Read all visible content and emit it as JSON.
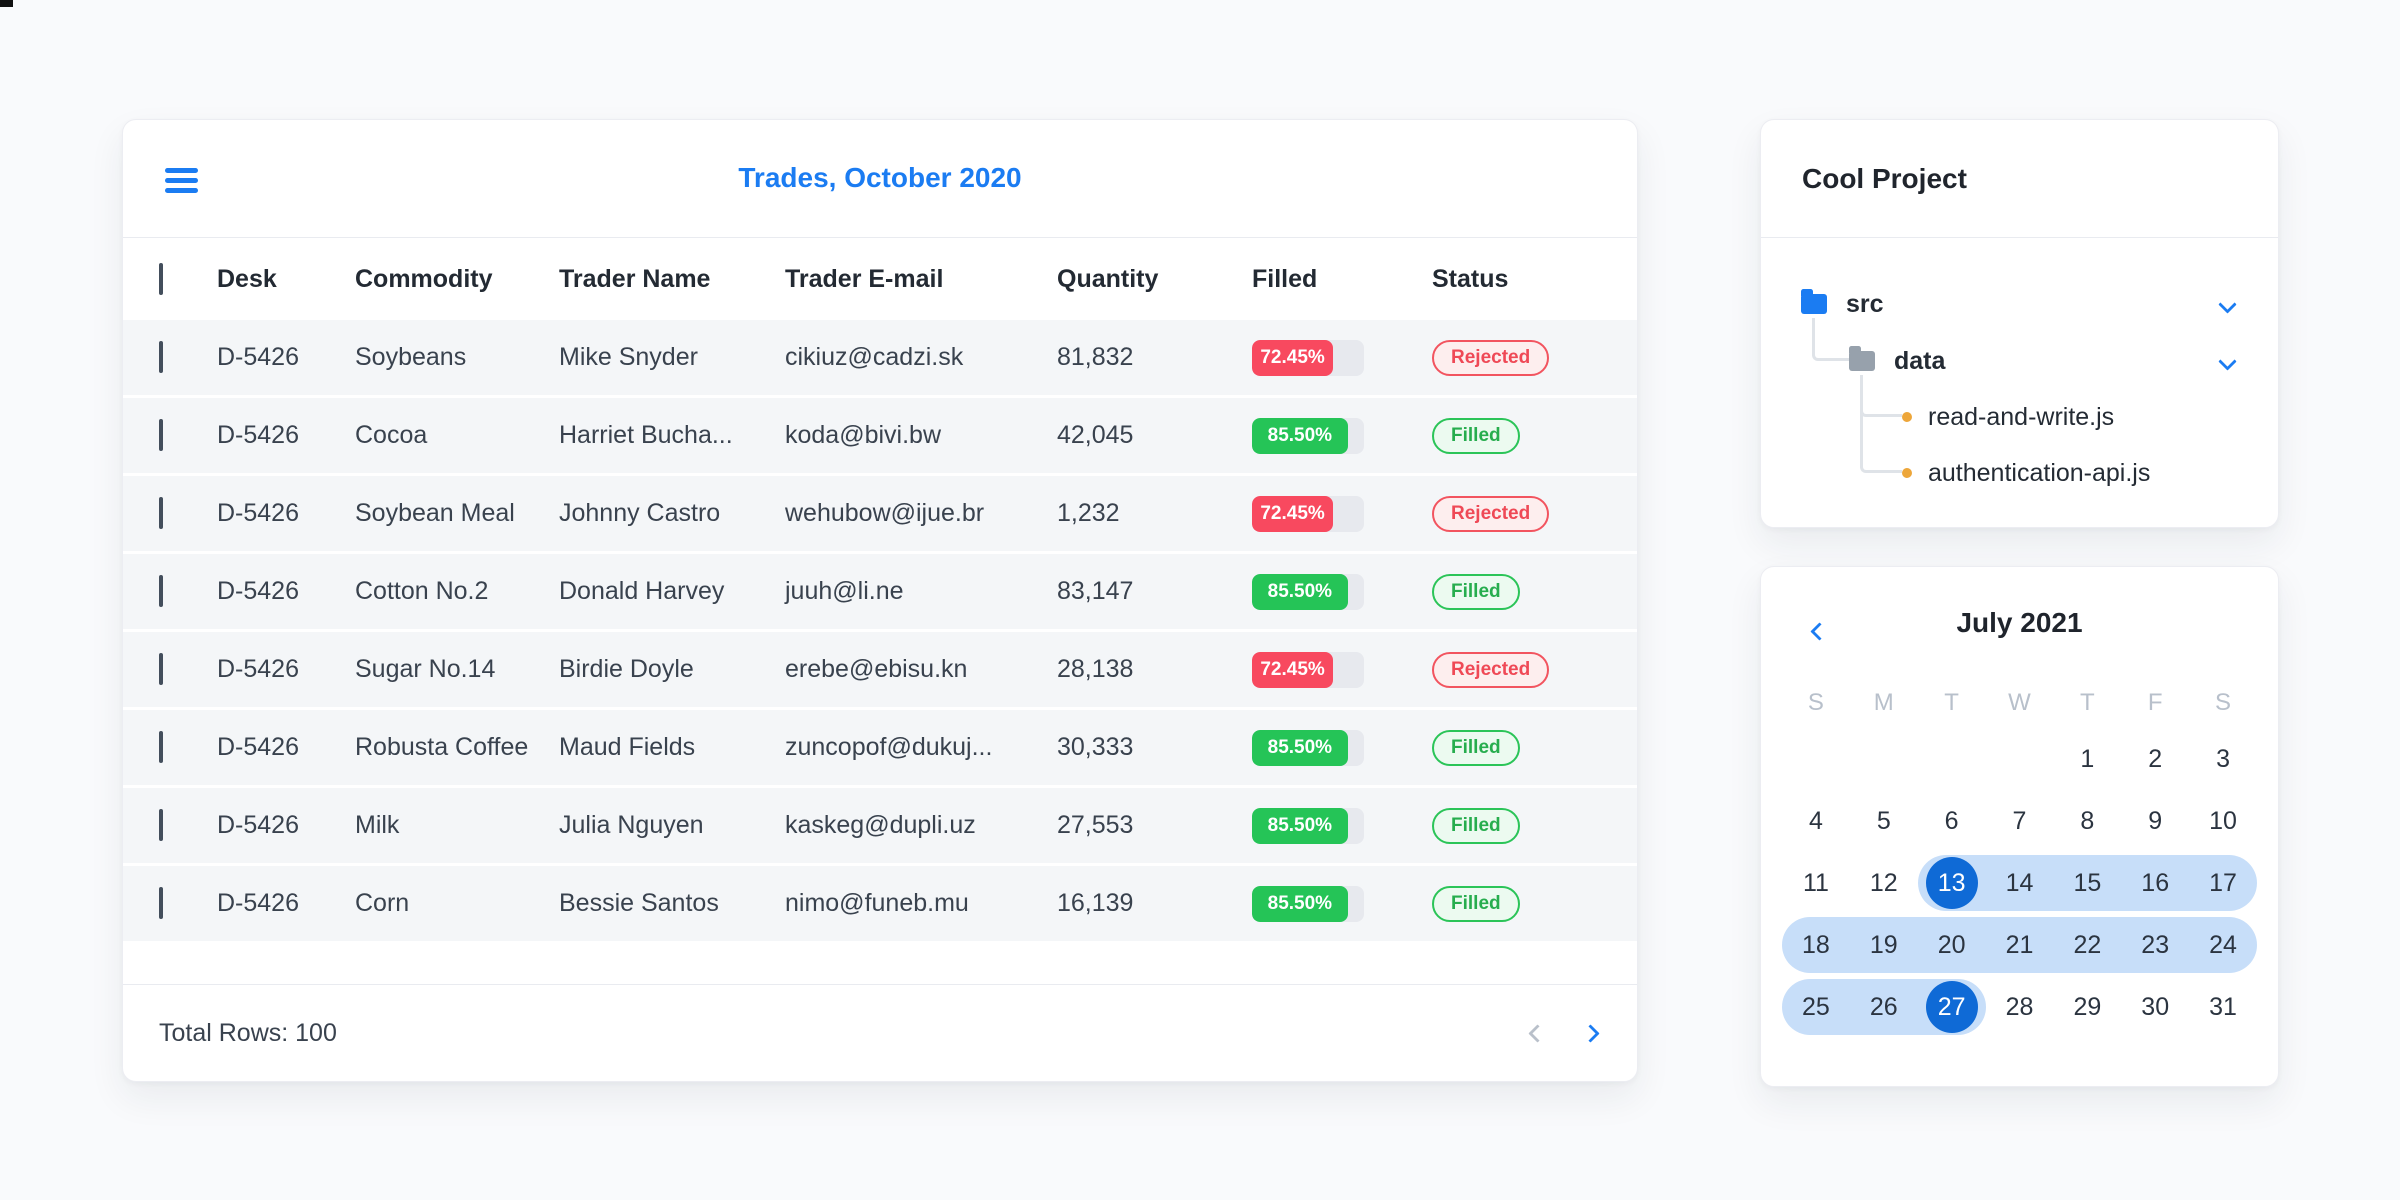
{
  "trades_card": {
    "title": "Trades, October 2020",
    "columns": [
      "Desk",
      "Commodity",
      "Trader Name",
      "Trader E-mail",
      "Quantity",
      "Filled",
      "Status"
    ],
    "rows": [
      {
        "desk": "D-5426",
        "commodity": "Soybeans",
        "trader_name": "Mike Snyder",
        "trader_email": "cikiuz@cadzi.sk",
        "quantity": "81,832",
        "filled_label": "72.45%",
        "filled_percent": 72.45,
        "filled_color": "red",
        "status": "Rejected",
        "status_type": "rejected"
      },
      {
        "desk": "D-5426",
        "commodity": "Cocoa",
        "trader_name": "Harriet Bucha...",
        "trader_email": "koda@bivi.bw",
        "quantity": "42,045",
        "filled_label": "85.50%",
        "filled_percent": 85.5,
        "filled_color": "green",
        "status": "Filled",
        "status_type": "filled"
      },
      {
        "desk": "D-5426",
        "commodity": "Soybean Meal",
        "trader_name": "Johnny Castro",
        "trader_email": "wehubow@ijue.br",
        "quantity": "1,232",
        "filled_label": "72.45%",
        "filled_percent": 72.45,
        "filled_color": "red",
        "status": "Rejected",
        "status_type": "rejected"
      },
      {
        "desk": "D-5426",
        "commodity": "Cotton No.2",
        "trader_name": "Donald Harvey",
        "trader_email": "juuh@li.ne",
        "quantity": "83,147",
        "filled_label": "85.50%",
        "filled_percent": 85.5,
        "filled_color": "green",
        "status": "Filled",
        "status_type": "filled"
      },
      {
        "desk": "D-5426",
        "commodity": "Sugar No.14",
        "trader_name": "Birdie Doyle",
        "trader_email": "erebe@ebisu.kn",
        "quantity": "28,138",
        "filled_label": "72.45%",
        "filled_percent": 72.45,
        "filled_color": "red",
        "status": "Rejected",
        "status_type": "rejected"
      },
      {
        "desk": "D-5426",
        "commodity": "Robusta Coffee",
        "trader_name": "Maud Fields",
        "trader_email": "zuncopof@dukuj...",
        "quantity": "30,333",
        "filled_label": "85.50%",
        "filled_percent": 85.5,
        "filled_color": "green",
        "status": "Filled",
        "status_type": "filled"
      },
      {
        "desk": "D-5426",
        "commodity": "Milk",
        "trader_name": "Julia Nguyen",
        "trader_email": "kaskeg@dupli.uz",
        "quantity": "27,553",
        "filled_label": "85.50%",
        "filled_percent": 85.5,
        "filled_color": "green",
        "status": "Filled",
        "status_type": "filled"
      },
      {
        "desk": "D-5426",
        "commodity": "Corn",
        "trader_name": "Bessie Santos",
        "trader_email": "nimo@funeb.mu",
        "quantity": "16,139",
        "filled_label": "85.50%",
        "filled_percent": 85.5,
        "filled_color": "green",
        "status": "Filled",
        "status_type": "filled"
      }
    ],
    "footer": {
      "total_rows_label": "Total Rows: 100"
    }
  },
  "project_card": {
    "title": "Cool Project",
    "tree": [
      {
        "label": "src",
        "kind": "folder",
        "folder_color": "blue",
        "expanded": true
      },
      {
        "label": "data",
        "kind": "folder",
        "folder_color": "gray",
        "expanded": true
      },
      {
        "label": "read-and-write.js",
        "kind": "file"
      },
      {
        "label": "authentication-api.js",
        "kind": "file"
      }
    ]
  },
  "calendar_card": {
    "title": "July 2021",
    "weekdays": [
      "S",
      "M",
      "T",
      "W",
      "T",
      "F",
      "S"
    ],
    "weeks": [
      [
        null,
        null,
        null,
        null,
        1,
        2,
        3
      ],
      [
        4,
        5,
        6,
        7,
        8,
        9,
        10
      ],
      [
        11,
        12,
        13,
        14,
        15,
        16,
        17
      ],
      [
        18,
        19,
        20,
        21,
        22,
        23,
        24
      ],
      [
        25,
        26,
        27,
        28,
        29,
        30,
        31
      ]
    ],
    "selected_range": {
      "start": 13,
      "end": 27
    }
  },
  "colors": {
    "accent_blue": "#1b7cf2",
    "bar_red": "#f8495f",
    "bar_green": "#25c457",
    "badge_red_text": "#ef4956",
    "badge_green_text": "#27ad4e",
    "calendar_selected": "#0f6ad6",
    "calendar_range": "#c7def9",
    "file_dot_orange": "#eda63a",
    "row_background": "#f4f6f8"
  }
}
